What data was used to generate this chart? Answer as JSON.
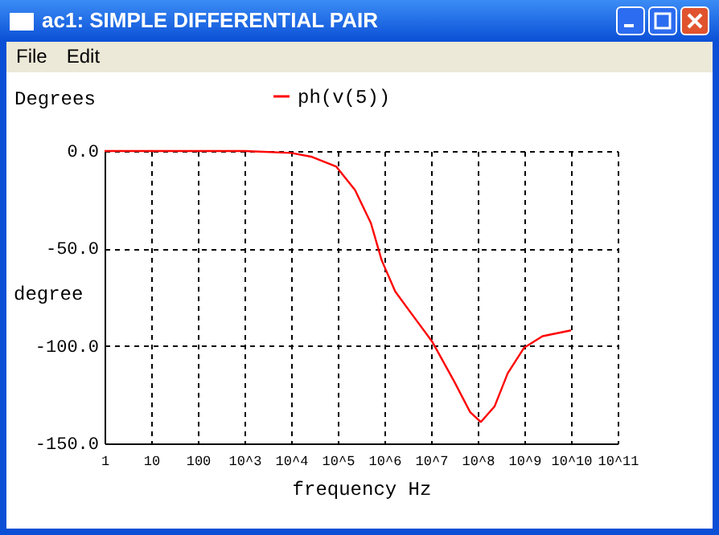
{
  "chart_data": {
    "type": "line",
    "title": "ac1: SIMPLE DIFFERENTIAL PAIR",
    "subtitle": "Degrees",
    "annotations": [
      "File",
      "Edit"
    ],
    "xlabel": "frequency Hz",
    "ylabel": "degree",
    "log": "x",
    "grid": true,
    "legend": "top",
    "line_style": "solid",
    "marker": "none",
    "xlim": [
      1,
      100000000000
    ],
    "ylim": [
      -150,
      0
    ],
    "xticks": [
      1,
      10,
      100,
      {
        "value": 1000,
        "label": "10^3"
      },
      {
        "value": 10000,
        "label": "10^4"
      },
      {
        "value": 100000,
        "label": "10^5"
      },
      {
        "value": 1000000,
        "label": "10^6"
      },
      {
        "value": 10000000,
        "label": "10^7"
      },
      {
        "value": 100000000,
        "label": "10^8"
      },
      {
        "value": 1000000000,
        "label": "10^9"
      },
      {
        "value": 10000000000,
        "label": "10^10"
      },
      {
        "value": 100000000000,
        "label": "10^11"
      }
    ],
    "yticks": [
      {
        "value": 0,
        "label": "0.0"
      },
      {
        "value": -50,
        "label": "-50.0"
      },
      {
        "value": -100,
        "label": "-100.0"
      },
      {
        "value": -150,
        "label": "-150.0"
      }
    ],
    "x": [
      1,
      1000,
      10000,
      28000,
      93000,
      234000,
      513000,
      871000,
      1700000,
      4900000,
      10700000,
      31000000,
      69000000,
      117000000,
      230000000,
      440000000,
      980000000,
      2450000000,
      10000000000
    ],
    "series": [
      {
        "name": "ph(v(5))",
        "color": "#ff0000",
        "values": [
          0,
          0,
          -1,
          -3,
          -8,
          -20,
          -37,
          -56,
          -72,
          -87,
          -98,
          -118,
          -134,
          -139,
          -131,
          -114,
          -101,
          -95,
          -92
        ]
      }
    ]
  }
}
